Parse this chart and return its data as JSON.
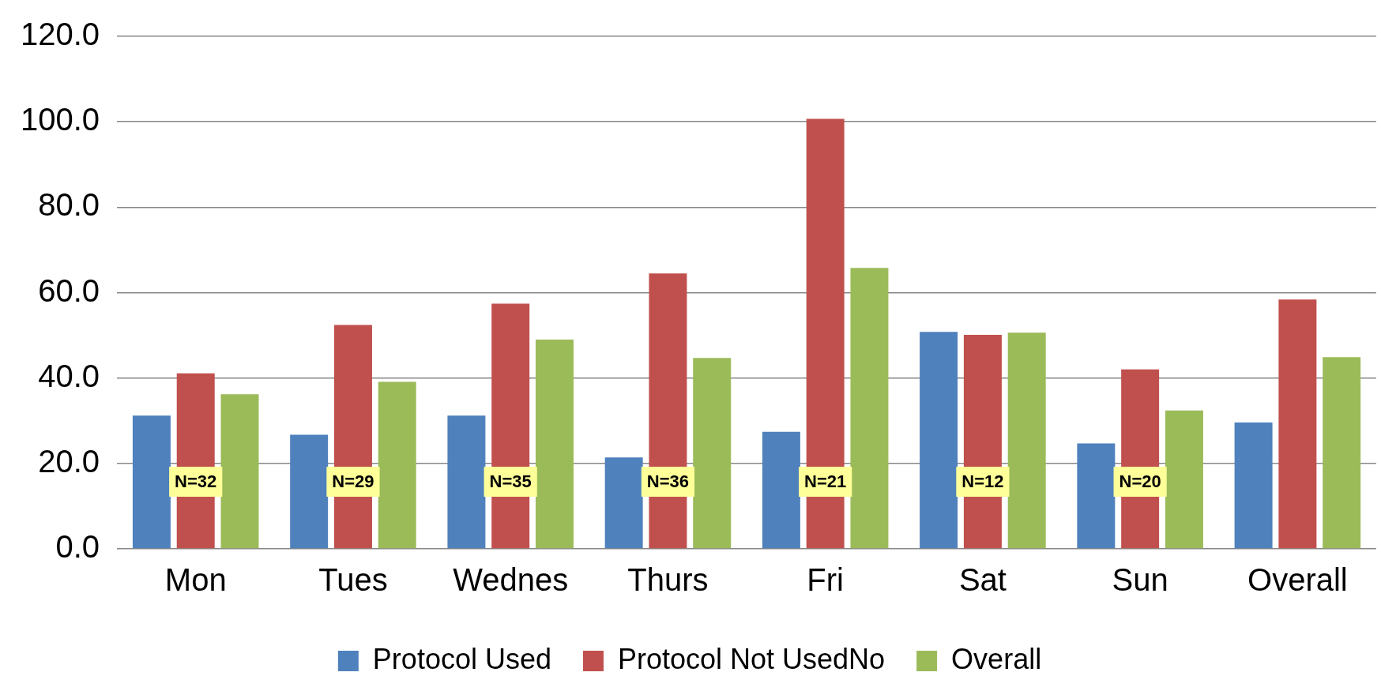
{
  "chart_data": {
    "type": "bar",
    "categories": [
      "Mon",
      "Tues",
      "Wednes",
      "Thurs",
      "Fri",
      "Sat",
      "Sun",
      "Overall"
    ],
    "series": [
      {
        "name": "Protocol Used",
        "color": "#4f81bd",
        "values": [
          31.2,
          26.7,
          31.2,
          21.4,
          27.4,
          50.8,
          24.7,
          29.6
        ]
      },
      {
        "name": "Protocol Not UsedNo",
        "color": "#c0504d",
        "values": [
          41.1,
          52.4,
          57.4,
          64.5,
          100.7,
          50.1,
          42.0,
          58.4
        ]
      },
      {
        "name": "Overall",
        "color": "#9bbb59",
        "values": [
          36.2,
          39.1,
          49.0,
          44.7,
          65.8,
          50.6,
          32.4,
          44.9
        ]
      }
    ],
    "ylim": [
      0,
      120
    ],
    "yticks": [
      {
        "value": 0,
        "label": "0.0"
      },
      {
        "value": 20,
        "label": "20.0"
      },
      {
        "value": 40,
        "label": "40.0"
      },
      {
        "value": 60,
        "label": "60.0"
      },
      {
        "value": 80,
        "label": "80.0"
      },
      {
        "value": 100,
        "label": "100.0"
      },
      {
        "value": 120,
        "label": "120.0"
      }
    ],
    "grid": "y",
    "legend": "bottom",
    "annotations": [
      "N=32",
      "N=29",
      "N=35",
      "N=36",
      "N=21",
      "N=12",
      "N=20"
    ]
  }
}
